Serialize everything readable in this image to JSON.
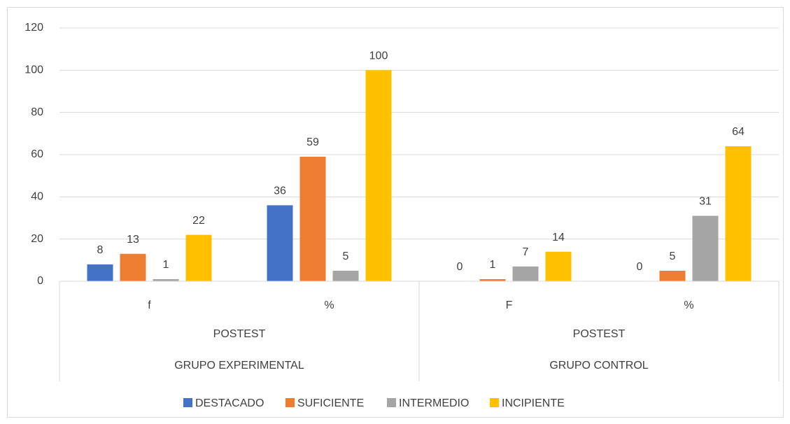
{
  "chart_data": {
    "type": "bar",
    "categories": [
      "f",
      "%",
      "F",
      "%"
    ],
    "category_level2": [
      "POSTEST",
      "POSTEST"
    ],
    "category_level3": [
      "GRUPO EXPERIMENTAL",
      "GRUPO CONTROL"
    ],
    "series": [
      {
        "name": "DESTACADO",
        "color": "#4472c4",
        "values": [
          8,
          36,
          0,
          0
        ]
      },
      {
        "name": "SUFICIENTE",
        "color": "#ed7d31",
        "values": [
          13,
          59,
          1,
          5
        ]
      },
      {
        "name": "INTERMEDIO",
        "color": "#a5a5a5",
        "values": [
          1,
          5,
          7,
          31
        ]
      },
      {
        "name": "INCIPIENTE",
        "color": "#ffc000",
        "values": [
          22,
          100,
          14,
          64
        ]
      }
    ],
    "ylim": [
      0,
      120
    ],
    "yticks": [
      0,
      20,
      40,
      60,
      80,
      100,
      120
    ],
    "grid": true,
    "legend": "bottom"
  }
}
